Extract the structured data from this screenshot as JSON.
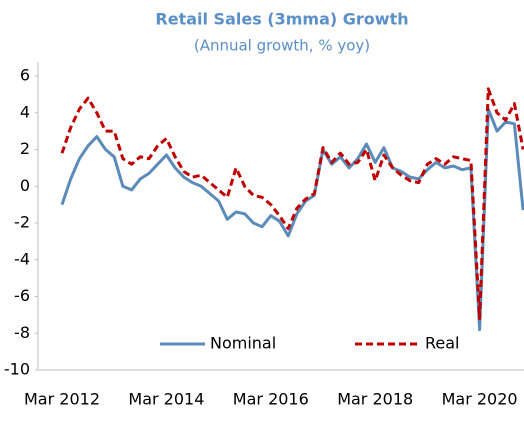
{
  "chart_data": {
    "type": "line",
    "title": "Retail Sales (3mma) Growth",
    "subtitle": "(Annual growth, % yoy)",
    "categories": [
      "Mar 2012",
      null,
      null,
      null,
      null,
      null,
      null,
      null,
      null,
      null,
      null,
      null,
      "Mar 2014",
      null,
      null,
      null,
      null,
      null,
      null,
      null,
      null,
      null,
      null,
      null,
      "Mar 2016",
      null,
      null,
      null,
      null,
      null,
      null,
      null,
      null,
      null,
      null,
      null,
      "Mar 2018",
      null,
      null,
      null,
      null,
      null,
      null,
      null,
      null,
      null,
      null,
      null,
      "Mar 2020",
      null,
      null,
      null,
      null,
      null
    ],
    "series": [
      {
        "name": "Nominal",
        "color": "#5b8bb8",
        "line_style": "solid",
        "values": [
          -1.0,
          0.4,
          1.5,
          2.2,
          2.7,
          2.0,
          1.6,
          0.0,
          -0.2,
          0.4,
          0.7,
          1.2,
          1.7,
          1.0,
          0.5,
          0.2,
          0.0,
          -0.4,
          -0.8,
          -1.8,
          -1.4,
          -1.5,
          -2.0,
          -2.2,
          -1.6,
          -1.9,
          -2.7,
          -1.5,
          -0.8,
          -0.5,
          2.0,
          1.2,
          1.6,
          1.0,
          1.5,
          2.3,
          1.3,
          2.1,
          1.0,
          0.8,
          0.5,
          0.4,
          0.9,
          1.3,
          1.0,
          1.1,
          0.9,
          1.0,
          -7.8,
          4.2,
          3.0,
          3.5,
          3.4,
          -1.3
        ]
      },
      {
        "name": "Real",
        "color": "#c00000",
        "line_style": "dashed",
        "values": [
          1.8,
          3.2,
          4.2,
          4.8,
          4.0,
          3.0,
          3.0,
          1.5,
          1.2,
          1.6,
          1.5,
          2.2,
          2.6,
          1.6,
          0.8,
          0.5,
          0.6,
          0.2,
          -0.2,
          -0.6,
          1.0,
          0.0,
          -0.5,
          -0.6,
          -1.0,
          -1.6,
          -2.3,
          -1.2,
          -0.7,
          -0.4,
          2.1,
          1.3,
          1.8,
          1.2,
          1.3,
          2.0,
          0.3,
          1.7,
          1.0,
          0.6,
          0.3,
          0.2,
          1.2,
          1.5,
          1.2,
          1.6,
          1.5,
          1.4,
          -7.2,
          5.3,
          4.0,
          3.6,
          4.5,
          2.0
        ]
      }
    ],
    "ylim": [
      -10,
      6
    ],
    "yticks": [
      -10,
      -8,
      -6,
      -4,
      -2,
      0,
      2,
      4,
      6
    ],
    "grid": false
  }
}
